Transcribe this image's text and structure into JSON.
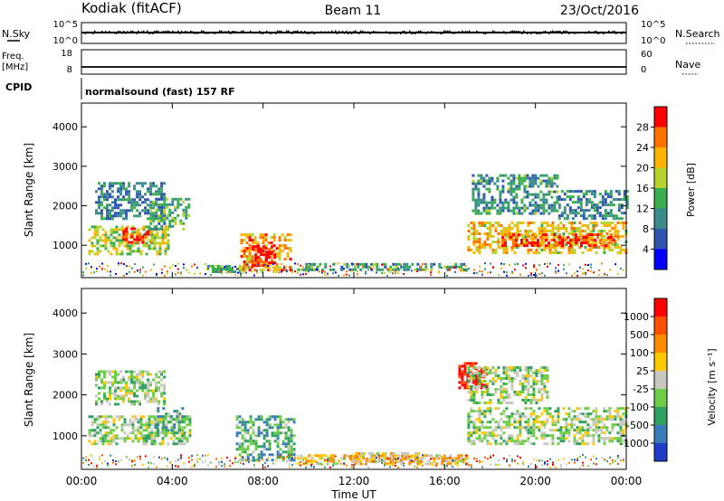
{
  "header": {
    "station": "Kodiak (fitACF)",
    "beam": "Beam 11",
    "date": "23/Oct/2016"
  },
  "status_panels": {
    "nsky": {
      "label": "N.Sky",
      "ticks": [
        "10^5",
        "10^0"
      ]
    },
    "nsearch": {
      "label": "N.Search",
      "ticks": [
        "10^5",
        "10^0"
      ]
    },
    "freq": {
      "label_line1": "Freq.",
      "label_line2": "[MHz]",
      "ticks": [
        "18",
        "8"
      ]
    },
    "nave": {
      "label": "Nave",
      "ticks": [
        "60",
        "0"
      ]
    },
    "cpid": {
      "label": "CPID",
      "value": "normalsound (fast) 157 RF"
    }
  },
  "chart_data": [
    {
      "type": "heatmap",
      "panel": "power",
      "ylabel": "Slant Range [km]",
      "yticks": [
        "4000",
        "3000",
        "2000",
        "1000"
      ],
      "ylim": [
        180,
        4600
      ],
      "xlim": [
        0,
        24
      ],
      "colorbar": {
        "label": "Power [dB]",
        "ticks": [
          "28",
          "24",
          "20",
          "16",
          "12",
          "8",
          "4"
        ],
        "colors": [
          "#0000ff",
          "#2f55b0",
          "#3a8c8c",
          "#3cae52",
          "#b8d22e",
          "#ffb400",
          "#ff7300",
          "#ff0000"
        ]
      },
      "regions": [
        {
          "t": [
            0.3,
            3.8
          ],
          "r": [
            800,
            1500
          ],
          "level": 0.55
        },
        {
          "t": [
            1.8,
            3.0
          ],
          "r": [
            1100,
            1450
          ],
          "level": 0.85
        },
        {
          "t": [
            0.6,
            3.6
          ],
          "r": [
            1700,
            2600
          ],
          "level": 0.3
        },
        {
          "t": [
            3.0,
            4.7
          ],
          "r": [
            1400,
            2200
          ],
          "level": 0.4
        },
        {
          "t": [
            7.0,
            9.2
          ],
          "r": [
            400,
            1300
          ],
          "level": 0.75
        },
        {
          "t": [
            7.5,
            8.5
          ],
          "r": [
            500,
            1000
          ],
          "level": 0.95
        },
        {
          "t": [
            5.5,
            7.2
          ],
          "r": [
            350,
            500
          ],
          "level": 0.4
        },
        {
          "t": [
            9.5,
            17.0
          ],
          "r": [
            350,
            550
          ],
          "level": 0.35
        },
        {
          "t": [
            17.0,
            24.0
          ],
          "r": [
            800,
            1600
          ],
          "level": 0.65
        },
        {
          "t": [
            18.5,
            23.5
          ],
          "r": [
            1000,
            1300
          ],
          "level": 0.85
        },
        {
          "t": [
            17.2,
            21.0
          ],
          "r": [
            1800,
            2800
          ],
          "level": 0.35
        },
        {
          "t": [
            21.0,
            24.0
          ],
          "r": [
            1700,
            2400
          ],
          "level": 0.3
        }
      ]
    },
    {
      "type": "heatmap",
      "panel": "velocity",
      "ylabel": "Slant Range [km]",
      "yticks": [
        "4000",
        "3000",
        "2000",
        "1000"
      ],
      "ylim": [
        180,
        4600
      ],
      "xlim": [
        0,
        24
      ],
      "colorbar": {
        "label": "Velocity [m s⁻¹]",
        "ticks": [
          "1000",
          "500",
          "100",
          "25",
          "-25",
          "-100",
          "-500",
          "-1000"
        ],
        "colors": [
          "#1e3cc8",
          "#3a7ab8",
          "#30a060",
          "#6ecc46",
          "#c8c8c0",
          "#ffc800",
          "#ff8c00",
          "#ff5000",
          "#ff0000"
        ]
      },
      "regions": [
        {
          "t": [
            0.3,
            4.8
          ],
          "r": [
            800,
            1500
          ],
          "level": 0.44
        },
        {
          "t": [
            0.6,
            3.6
          ],
          "r": [
            1800,
            2600
          ],
          "level": 0.44
        },
        {
          "t": [
            3.2,
            4.4
          ],
          "r": [
            1000,
            1700
          ],
          "level": 0.3
        },
        {
          "t": [
            6.8,
            9.4
          ],
          "r": [
            400,
            1500
          ],
          "level": 0.3
        },
        {
          "t": [
            9.5,
            17.0
          ],
          "r": [
            350,
            550
          ],
          "level": 0.6
        },
        {
          "t": [
            11.8,
            15.0
          ],
          "r": [
            400,
            600
          ],
          "level": 0.6
        },
        {
          "t": [
            17.0,
            24.0
          ],
          "r": [
            800,
            1700
          ],
          "level": 0.44
        },
        {
          "t": [
            16.6,
            17.8
          ],
          "r": [
            2200,
            2800
          ],
          "level": 0.95
        },
        {
          "t": [
            17.0,
            20.5
          ],
          "r": [
            1800,
            2700
          ],
          "level": 0.44
        }
      ]
    }
  ],
  "x_axis": {
    "ticks": [
      "00:00",
      "04:00",
      "08:00",
      "12:00",
      "16:00",
      "20:00",
      "00:00"
    ],
    "label": "Time UT"
  }
}
